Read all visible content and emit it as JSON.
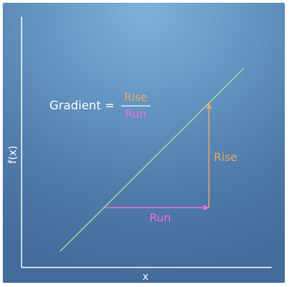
{
  "formula": {
    "lhs": "Gradient =",
    "numerator": "Rise",
    "denominator": "Run"
  },
  "labels": {
    "rise": "Rise",
    "run": "Run"
  },
  "axes": {
    "xlabel": "x",
    "ylabel": "f(x)"
  },
  "colors": {
    "line": "#a8dc8e",
    "rise": "#e6a86a",
    "run": "#ee6fe6",
    "axis": "#ffffff",
    "text": "#ffffff"
  }
}
